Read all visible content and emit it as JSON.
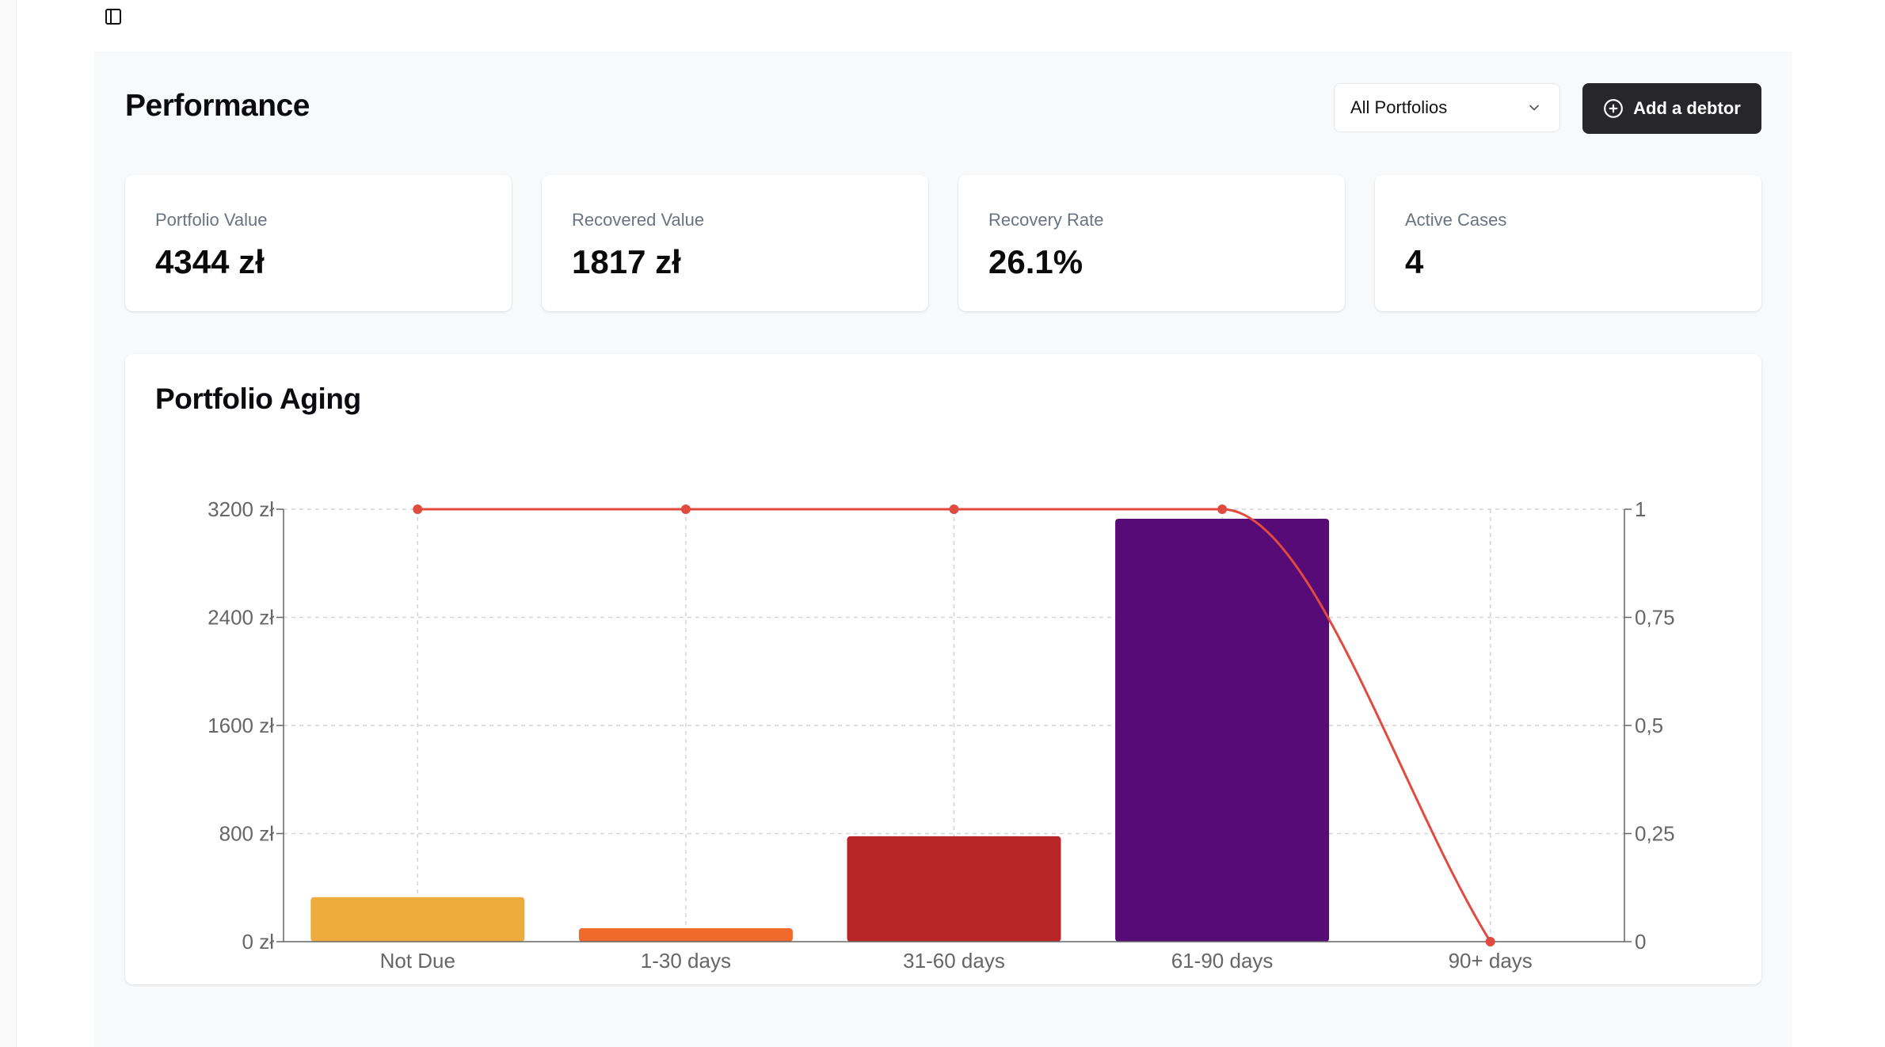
{
  "sidebar_toggle": {
    "icon": "panel-left-icon"
  },
  "header": {
    "title": "Performance",
    "portfolio_select": {
      "value": "All Portfolios",
      "icon": "chevron-down-icon"
    },
    "add_button": {
      "label": "Add a debtor",
      "icon": "plus-circle-icon"
    }
  },
  "stats": [
    {
      "label": "Portfolio Value",
      "value": "4344 zł"
    },
    {
      "label": "Recovered Value",
      "value": "1817 zł"
    },
    {
      "label": "Recovery Rate",
      "value": "26.1%"
    },
    {
      "label": "Active Cases",
      "value": "4"
    }
  ],
  "colors": {
    "primary_button": "#27272a",
    "line": "#e04a3f",
    "axis": "#666666",
    "grid": "#d4d4d4"
  },
  "chart_data": {
    "type": "bar",
    "title": "Portfolio Aging",
    "categories": [
      "Not Due",
      "1-30 days",
      "31-60 days",
      "61-90 days",
      "90+ days"
    ],
    "series": [
      {
        "type": "bar",
        "axis": "left",
        "values": [
          330,
          100,
          780,
          3130,
          0
        ],
        "colors": [
          "#edac3d",
          "#ef6a2c",
          "#b82527",
          "#560b76",
          "#cccccc"
        ]
      },
      {
        "type": "line",
        "axis": "right",
        "values": [
          1,
          1,
          1,
          1,
          0
        ],
        "color": "#e04a3f"
      }
    ],
    "left_axis": {
      "ticks": [
        0,
        800,
        1600,
        2400,
        3200
      ],
      "tick_labels": [
        "0 zł",
        "800 zł",
        "1600 zł",
        "2400 zł",
        "3200 zł"
      ],
      "ylim": [
        0,
        3200
      ]
    },
    "right_axis": {
      "ticks": [
        0,
        0.25,
        0.5,
        0.75,
        1
      ],
      "tick_labels": [
        "0",
        "0,25",
        "0,5",
        "0,75",
        "1"
      ],
      "ylim": [
        0,
        1
      ]
    },
    "grid": true,
    "legend": false
  }
}
